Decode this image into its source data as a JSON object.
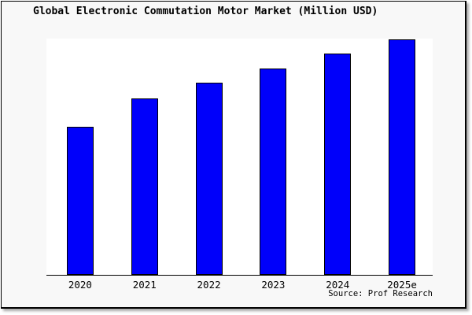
{
  "page": {
    "title": "Global Electronic Commutation Motor Market (Million USD)",
    "source_credit": "Source: Prof Research"
  },
  "chart_data": {
    "type": "bar",
    "title": "Global Electronic Commutation Motor Market (Million USD)",
    "categories": [
      "2020",
      "2021",
      "2022",
      "2023",
      "2024",
      "2025e"
    ],
    "values": [
      188,
      224,
      244,
      262,
      281,
      299
    ],
    "units": "relative bar height in px (y-axis is unlabeled, no ticks or gridlines)",
    "values_pct_of_max": [
      62.9,
      74.9,
      81.6,
      87.6,
      94.0,
      100
    ],
    "xlabel": "",
    "ylabel": "",
    "legend_position": "none",
    "gridlines": false,
    "y_axis_ticks": [],
    "colors": {
      "bar_fill": "#0000fa",
      "bar_border": "#000000",
      "plot_background": "#ffffff",
      "chart_background": "#f8f8f8",
      "frame_border": "#000000",
      "text": "#000000"
    }
  }
}
